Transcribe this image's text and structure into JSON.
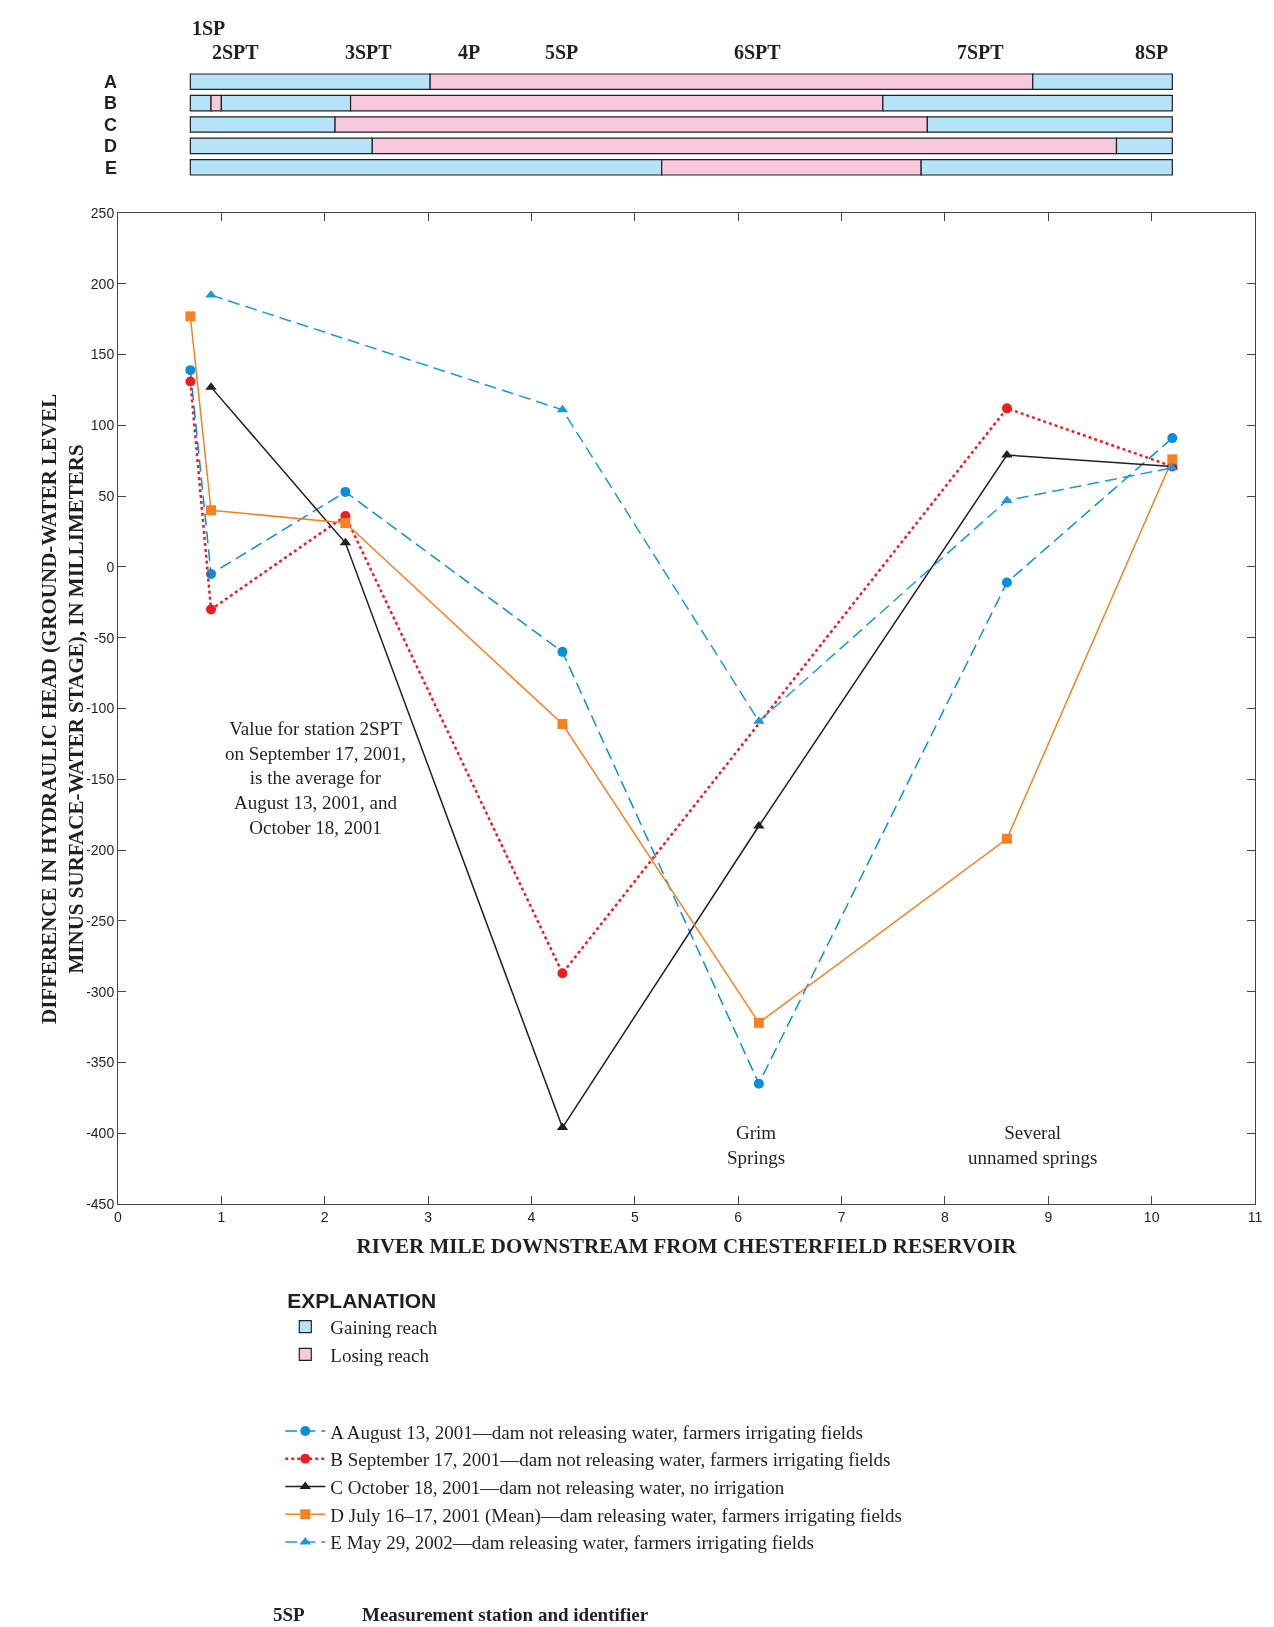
{
  "chart_data": [
    {
      "type": "bar",
      "orientation": "horizontal",
      "categories": [
        "A",
        "B",
        "C",
        "D",
        "E"
      ],
      "series": [
        {
          "name": "Gaining reach",
          "color": "#b5e3f7",
          "base": [
            0.7,
            0.7,
            0.7,
            0.7,
            0.7
          ],
          "values": [
            2.32,
            0.2,
            1.4,
            1.76,
            4.56
          ]
        },
        {
          "name": "Losing reach",
          "color": "#f8c8dc",
          "base": [
            3.02,
            0.9,
            2.1,
            2.46,
            5.26
          ],
          "values": [
            5.83,
            0.1,
            5.73,
            7.2,
            2.51
          ]
        },
        {
          "color": "#b5e3f7",
          "base": [
            8.85,
            1.0,
            7.83,
            9.66,
            7.77
          ],
          "values": [
            1.35,
            1.25,
            2.37,
            0.54,
            2.43
          ]
        },
        {
          "color": "#f8c8dc",
          "base": [
            null,
            2.25,
            null,
            null,
            null
          ],
          "values": [
            null,
            5.15,
            null,
            null,
            null
          ]
        },
        {
          "color": "#b5e3f7",
          "base": [
            null,
            7.4,
            null,
            null,
            null
          ],
          "values": [
            null,
            2.8,
            null,
            null,
            null
          ]
        }
      ],
      "xlim": [
        0,
        11
      ],
      "tick_labels": "y",
      "legend": "bottom",
      "legend_title": "EXPLANATION",
      "annotations": [
        "1SP",
        "2SPT",
        "3SPT",
        "4P",
        "5SP",
        "6SPT",
        "7SPT",
        "8SP",
        "5SP",
        "Measurement station and identifier"
      ]
    },
    {
      "type": "line",
      "xlabel": "RIVER MILE DOWNSTREAM FROM CHESTERFIELD RESERVOIR",
      "ylabel": "DIFFERENCE IN HYDRAULIC HEAD (GROUND-WATER LEVEL\nMINUS SURFACE-WATER STAGE), IN MILLIMETERS",
      "xlim": [
        0,
        11
      ],
      "xticks": [
        0,
        1,
        2,
        3,
        4,
        5,
        6,
        7,
        8,
        9,
        10,
        11
      ],
      "ylim": [
        -450,
        250
      ],
      "yticks": [
        -450,
        -400,
        -350,
        -300,
        -250,
        -200,
        -150,
        -100,
        -50,
        0,
        50,
        100,
        150,
        200,
        250
      ],
      "legend": "bottom",
      "series": [
        {
          "name": "A August 13, 2001—dam not releasing water, farmers irrigating fields",
          "color": "#0a8fd6",
          "marker": "circle",
          "line_style": "dashed",
          "x": [
            0.7,
            0.9,
            2.2,
            4.3,
            6.2,
            8.6,
            10.2
          ],
          "values": [
            139,
            -5,
            53,
            -60,
            -365,
            -11,
            91
          ]
        },
        {
          "name": "B September 17, 2001—dam not releasing water, farmers irrigating fields",
          "color": "#ee1c25",
          "marker": "circle",
          "line_style": "dotted",
          "x": [
            0.7,
            0.9,
            2.2,
            4.3,
            8.6,
            10.2
          ],
          "values": [
            131,
            -30,
            36,
            -287,
            112,
            71
          ]
        },
        {
          "name": "C October 18, 2001—dam not releasing water, no irrigation",
          "color": "#231f20",
          "marker": "triangle",
          "line_style": "solid",
          "x": [
            0.9,
            2.2,
            4.3,
            6.2,
            8.6,
            10.2
          ],
          "values": [
            127,
            17,
            -396,
            -183,
            79,
            71
          ]
        },
        {
          "name": "D July 16–17, 2001 (Mean)—dam releasing water, farmers irrigating fields",
          "color": "#f58220",
          "marker": "square",
          "line_style": "solid",
          "x": [
            0.7,
            0.9,
            2.2,
            4.3,
            6.2,
            8.6,
            10.2
          ],
          "values": [
            177,
            40,
            31,
            -111,
            -322,
            -192,
            76
          ]
        },
        {
          "name": "E May 29, 2002—dam releasing water, farmers irrigating fields",
          "color": "#1a9ad9",
          "marker": "triangle",
          "line_style": "dashed",
          "x": [
            0.9,
            4.3,
            6.2,
            8.6,
            10.2
          ],
          "values": [
            192,
            111,
            -109,
            47,
            70
          ]
        }
      ],
      "annotations": [
        "Value for station 2SPT\non September 17, 2001,\nis the average for\nAugust 13, 2001, and\nOctober 18, 2001",
        "Grim\nSprings",
        "Several\nunnamed springs"
      ]
    }
  ]
}
